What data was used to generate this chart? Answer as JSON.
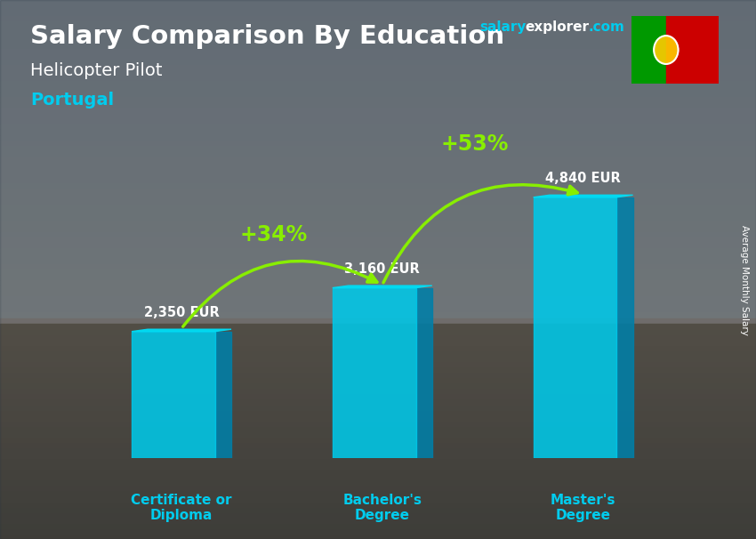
{
  "title_main": "Salary Comparison By Education",
  "subtitle": "Helicopter Pilot",
  "country": "Portugal",
  "categories": [
    "Certificate or\nDiploma",
    "Bachelor's\nDegree",
    "Master's\nDegree"
  ],
  "values": [
    2350,
    3160,
    4840
  ],
  "value_labels": [
    "2,350 EUR",
    "3,160 EUR",
    "4,840 EUR"
  ],
  "pct_labels": [
    "+34%",
    "+53%"
  ],
  "bar_front_color": "#00c8e8",
  "bar_side_color": "#007fa8",
  "bar_top_color": "#00ddf5",
  "title_color": "#ffffff",
  "subtitle_color": "#ffffff",
  "country_color": "#00ccee",
  "value_color": "#ffffff",
  "pct_color": "#88ee00",
  "xlabel_color": "#00ccee",
  "watermark_salary": "salary",
  "watermark_explorer": "explorer",
  "watermark_com": ".com",
  "watermark_color1": "#00ccee",
  "watermark_color2": "#ffffff",
  "side_label": "Average Monthly Salary",
  "ylim_data": 5500,
  "bg_sky_color": "#8899aa",
  "bg_ground_color": "#6a5a45",
  "flag_green": "#009900",
  "flag_red": "#cc0000",
  "flag_emblem": "#ffcc00"
}
